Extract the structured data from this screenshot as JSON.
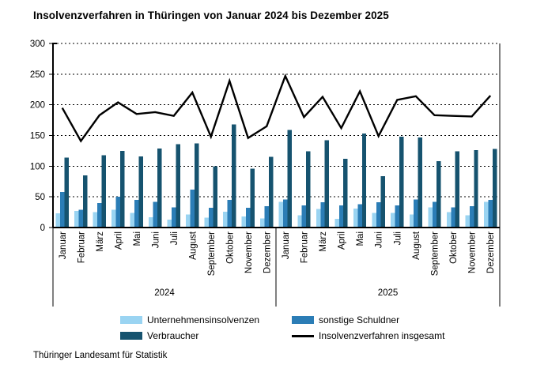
{
  "title": "Insolvenzverfahren in Thüringen von Januar 2024 bis Dezember 2025",
  "footer": "Thüringer Landesamt für Statistik",
  "colors": {
    "unternehmensinsolvenzen": "#9ad4f2",
    "sonstige_schuldner": "#2b7db6",
    "verbraucher": "#16536f",
    "insgesamt_line": "#000000",
    "axis": "#000000",
    "grid": "#000000"
  },
  "legend": {
    "items": [
      {
        "label": "Unternehmensinsolvenzen",
        "swatch": "unternehmensinsolvenzen",
        "type": "box"
      },
      {
        "label": "sonstige Schuldner",
        "swatch": "sonstige_schuldner",
        "type": "box"
      },
      {
        "label": "Verbraucher",
        "swatch": "verbraucher",
        "type": "box"
      },
      {
        "label": "Insolvenzverfahren insgesamt",
        "swatch": "insgesamt_line",
        "type": "line"
      }
    ]
  },
  "chart_data": {
    "type": "bar",
    "subtype": "grouped bars with overlaid total line",
    "title": "Insolvenzverfahren in Thüringen von Januar 2024 bis Dezember 2025",
    "xlabel": "",
    "ylabel": "",
    "ylim": [
      0,
      300
    ],
    "ytick_step": 50,
    "yticks": [
      0,
      50,
      100,
      150,
      200,
      250,
      300
    ],
    "grid": "dashed horizontal",
    "legend_position": "bottom",
    "month_labels": [
      "Januar",
      "Februar",
      "März",
      "April",
      "Mai",
      "Juni",
      "Juli",
      "August",
      "September",
      "Oktober",
      "November",
      "Dezember"
    ],
    "year_labels": [
      "2024",
      "2025"
    ],
    "categories": [
      "Januar 2024",
      "Februar 2024",
      "März 2024",
      "April 2024",
      "Mai 2024",
      "Juni 2024",
      "Juli 2024",
      "August 2024",
      "September 2024",
      "Oktober 2024",
      "November 2024",
      "Dezember 2024",
      "Januar 2025",
      "Februar 2025",
      "März 2025",
      "April 2025",
      "Mai 2025",
      "Juni 2025",
      "Juli 2025",
      "August 2025",
      "September 2025",
      "Oktober 2025",
      "November 2025",
      "Dezember 2025"
    ],
    "series": [
      {
        "name": "Unternehmensinsolvenzen",
        "render": "bar",
        "color_key": "unternehmensinsolvenzen",
        "values": [
          23,
          27,
          25,
          29,
          24,
          17,
          13,
          21,
          16,
          26,
          18,
          15,
          42,
          20,
          30,
          14,
          31,
          24,
          24,
          21,
          33,
          25,
          20,
          42
        ]
      },
      {
        "name": "sonstige Schuldner",
        "render": "bar",
        "color_key": "sonstige_schuldner",
        "values": [
          58,
          29,
          40,
          50,
          45,
          42,
          33,
          62,
          32,
          45,
          32,
          35,
          46,
          36,
          41,
          36,
          38,
          41,
          36,
          46,
          42,
          33,
          35,
          45
        ]
      },
      {
        "name": "Verbraucher",
        "render": "bar",
        "color_key": "verbraucher",
        "values": [
          114,
          85,
          118,
          125,
          116,
          129,
          136,
          137,
          100,
          168,
          96,
          115,
          159,
          124,
          142,
          112,
          153,
          84,
          148,
          147,
          108,
          124,
          126,
          128
        ]
      },
      {
        "name": "Insolvenzverfahren insgesamt",
        "render": "line",
        "color_key": "insgesamt_line",
        "values": [
          195,
          141,
          183,
          204,
          185,
          188,
          182,
          220,
          148,
          239,
          146,
          165,
          247,
          180,
          213,
          162,
          222,
          149,
          208,
          214,
          183,
          182,
          181,
          215
        ]
      }
    ]
  }
}
